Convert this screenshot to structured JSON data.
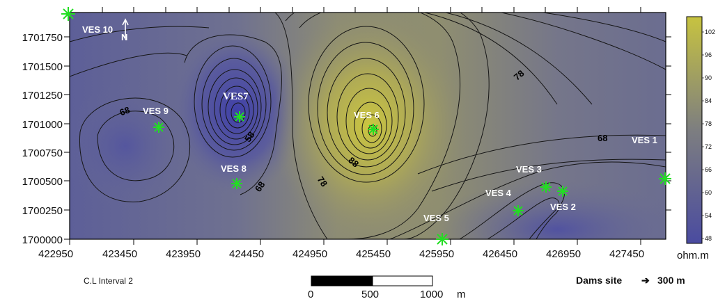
{
  "map": {
    "y_ticks": [
      "1700000",
      "1700250",
      "1700500",
      "1700750",
      "1701000",
      "1701250",
      "1701500",
      "1701750"
    ],
    "x_ticks": [
      "422950",
      "423450",
      "423950",
      "424450",
      "424950",
      "425450",
      "425950",
      "426450",
      "426950",
      "427450"
    ],
    "north_label": "N",
    "stations": [
      {
        "name": "VES 10"
      },
      {
        "name": "VES 9"
      },
      {
        "name": "VES7"
      },
      {
        "name": "VES 8"
      },
      {
        "name": "VES 6"
      },
      {
        "name": "VES 5"
      },
      {
        "name": "VES 4"
      },
      {
        "name": "VES 3"
      },
      {
        "name": "VES 2"
      },
      {
        "name": "VES 1"
      }
    ],
    "contour_labels": [
      "68",
      "58",
      "68",
      "88",
      "78",
      "78",
      "68"
    ],
    "colorbar": {
      "ticks": [
        "102",
        "96",
        "90",
        "84",
        "78",
        "72",
        "66",
        "60",
        "54",
        "48"
      ],
      "unit": "ohm.m",
      "low_color": "#4a4ba0",
      "mid_color": "#7d7e80",
      "high_color": "#c7c340"
    },
    "interval_label": "C.L Interval 2",
    "scale_ticks": [
      "0",
      "500",
      "1000"
    ],
    "scale_unit": "m",
    "site_note": "Dams site",
    "site_arrow": "➔",
    "site_distance": "300 m",
    "marker_color": "#22dd22"
  }
}
